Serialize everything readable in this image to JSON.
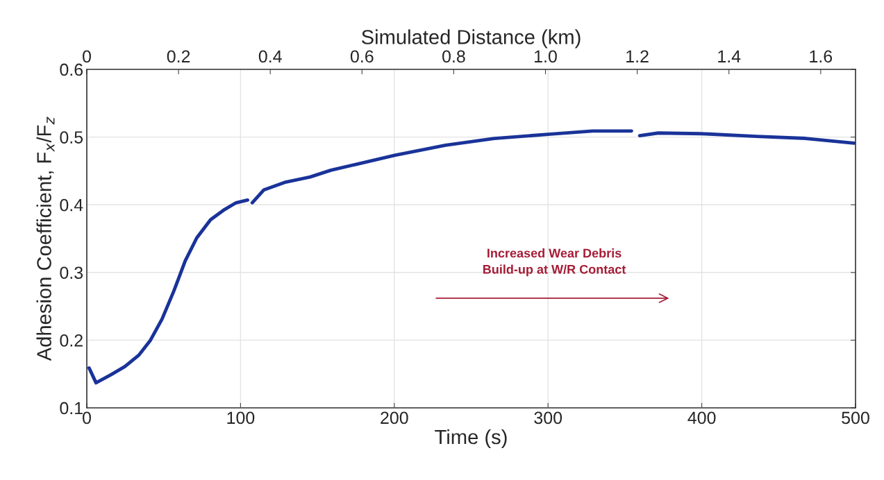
{
  "chart_data": {
    "type": "line",
    "xlabel": "Time (s)",
    "ylabel": "Adhesion Coefficient, F$_{x}$/F$_{z}$",
    "x2label": "Simulated Distance (km)",
    "series": [
      {
        "color": "#1a3399",
        "x": [
          1.5,
          6,
          15.8,
          24.8,
          33.9,
          41.4,
          48.9,
          56.5,
          64,
          71.5,
          80.5,
          89.6,
          97.1,
          104.6,
          106,
          107.6,
          115.2,
          128.7,
          145.3,
          158.8,
          173.9,
          200.3,
          233.3,
          265,
          300,
          329,
          354.3,
          357,
          359.6,
          371.7,
          399.5,
          435.7,
          467.5,
          499
        ],
        "values": [
          0.159,
          0.137,
          0.149,
          0.161,
          0.178,
          0.2,
          0.231,
          0.272,
          0.317,
          0.351,
          0.378,
          0.393,
          0.403,
          0.407,
          null,
          0.403,
          0.422,
          0.433,
          0.441,
          0.451,
          0.459,
          0.473,
          0.488,
          0.498,
          0.504,
          0.509,
          0.509,
          null,
          0.502,
          0.506,
          0.505,
          0.501,
          0.498,
          0.491
        ]
      }
    ],
    "xlim": [
      0,
      500
    ],
    "xticks": [
      0,
      100,
      200,
      300,
      400,
      500
    ],
    "ylim": [
      0.1,
      0.6
    ],
    "yticks": [
      0.1,
      0.2,
      0.3,
      0.4,
      0.5,
      0.6
    ],
    "x2lim": [
      0,
      1.676
    ],
    "x2ticks": [
      0,
      0.2,
      0.4,
      0.6,
      0.8,
      {
        "value": 1,
        "label": "1.0"
      },
      1.2,
      1.4,
      1.6
    ],
    "grid": true,
    "marker": "none",
    "line_style": "solid",
    "legend": false,
    "annotations": [
      "Increased Wear Debris\nBuild-up at W/R Contact"
    ]
  }
}
